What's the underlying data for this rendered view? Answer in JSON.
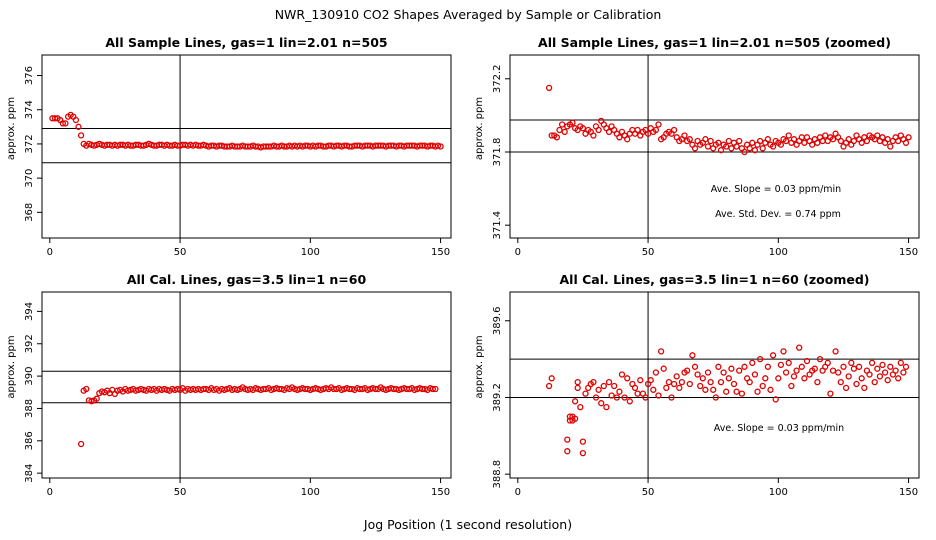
{
  "figure": {
    "title": "NWR_130910  CO2 Shapes Averaged by Sample or Calibration",
    "xlabel": "Jog Position (1 second resolution)"
  },
  "colors": {
    "points": "#e00000",
    "lines": "#000000"
  },
  "chart_data": [
    {
      "type": "scatter",
      "title": "All Sample Lines, gas=1 lin=2.01 n=505",
      "ylabel": "approx. ppm",
      "xlim": [
        -3,
        154
      ],
      "ylim": [
        366.5,
        377.2
      ],
      "xticks": [
        0,
        50,
        100,
        150
      ],
      "yticks": [
        368,
        370,
        372,
        374,
        376
      ],
      "vline_x": 50,
      "hlines": [
        370.9,
        372.9
      ],
      "annotations": [],
      "series": [
        {
          "x_start": 1,
          "y": [
            373.5,
            373.5,
            373.5,
            373.4,
            373.2,
            373.2,
            373.6,
            373.7,
            373.6,
            373.4,
            373.0,
            372.5,
            372.0,
            371.9,
            372.0,
            371.95,
            371.9,
            371.95,
            372.0,
            371.95,
            371.9,
            371.95,
            371.95,
            371.9,
            371.95,
            371.9,
            371.95,
            371.95,
            371.9,
            371.95,
            371.9,
            371.9,
            371.95,
            371.95,
            371.9,
            371.9,
            371.95,
            372.0,
            371.95,
            371.9,
            371.9,
            371.95,
            371.95,
            371.9,
            371.95,
            371.9,
            371.9,
            371.95,
            371.9,
            371.9,
            371.95,
            371.95,
            371.9,
            371.95,
            371.9,
            371.95,
            371.9,
            371.9,
            371.95,
            371.9,
            371.85,
            371.9,
            371.9,
            371.85,
            371.9,
            371.9,
            371.85,
            371.85,
            371.85,
            371.9,
            371.85,
            371.85,
            371.85,
            371.9,
            371.85,
            371.85,
            371.85,
            371.9,
            371.85,
            371.85,
            371.8,
            371.85,
            371.85,
            371.85,
            371.85,
            371.9,
            371.85,
            371.85,
            371.9,
            371.85,
            371.85,
            371.9,
            371.85,
            371.9,
            371.85,
            371.9,
            371.85,
            371.9,
            371.9,
            371.85,
            371.9,
            371.85,
            371.9,
            371.9,
            371.85,
            371.85,
            371.9,
            371.9,
            371.85,
            371.9,
            371.9,
            371.85,
            371.9,
            371.9,
            371.85,
            371.85,
            371.9,
            371.9,
            371.9,
            371.85,
            371.9,
            371.9,
            371.9,
            371.85,
            371.9,
            371.9,
            371.9,
            371.9,
            371.85,
            371.9,
            371.9,
            371.9,
            371.85,
            371.9,
            371.9,
            371.85,
            371.9,
            371.9,
            371.9,
            371.9,
            371.85,
            371.9,
            371.9,
            371.9,
            371.85,
            371.9,
            371.9,
            371.85,
            371.9,
            371.85
          ]
        }
      ]
    },
    {
      "type": "scatter",
      "title": "All Sample Lines, gas=1 lin=2.01 n=505 (zoomed)",
      "ylabel": "approx. ppm",
      "xlim": [
        -3,
        154
      ],
      "ylim": [
        371.33,
        372.33
      ],
      "xticks": [
        0,
        50,
        100,
        150
      ],
      "yticks": [
        371.4,
        371.8,
        372.2
      ],
      "vline_x": 50,
      "hlines": [
        371.8,
        371.975
      ],
      "annotations": [
        "Ave. Slope =  0.03  ppm/min",
        "Ave. Std. Dev. =  0.74  ppm"
      ],
      "series": [
        {
          "x_start": 12,
          "y": [
            372.15,
            371.89,
            371.89,
            371.88,
            371.92,
            371.95,
            371.91,
            371.94,
            371.95,
            371.96,
            371.93,
            371.92,
            371.94,
            371.93,
            371.9,
            371.92,
            371.91,
            371.89,
            371.94,
            371.92,
            371.97,
            371.95,
            371.93,
            371.91,
            371.94,
            371.92,
            371.9,
            371.88,
            371.91,
            371.89,
            371.87,
            371.9,
            371.92,
            371.9,
            371.92,
            371.89,
            371.91,
            371.92,
            371.9,
            371.93,
            371.91,
            371.92,
            371.95,
            371.87,
            371.88,
            371.9,
            371.91,
            371.9,
            371.92,
            371.88,
            371.86,
            371.87,
            371.89,
            371.86,
            371.87,
            371.84,
            371.82,
            371.86,
            371.84,
            371.85,
            371.87,
            371.83,
            371.86,
            371.82,
            371.84,
            371.85,
            371.81,
            371.84,
            371.83,
            371.86,
            371.82,
            371.85,
            371.83,
            371.86,
            371.82,
            371.8,
            371.84,
            371.82,
            371.85,
            371.81,
            371.84,
            371.86,
            371.82,
            371.85,
            371.87,
            371.84,
            371.83,
            371.86,
            371.85,
            371.84,
            371.87,
            371.86,
            371.89,
            371.85,
            371.87,
            371.84,
            371.86,
            371.88,
            371.85,
            371.88,
            371.86,
            371.84,
            371.87,
            371.85,
            371.88,
            371.86,
            371.89,
            371.86,
            371.88,
            371.87,
            371.9,
            371.88,
            371.86,
            371.83,
            371.85,
            371.87,
            371.84,
            371.86,
            371.89,
            371.87,
            371.85,
            371.88,
            371.86,
            371.89,
            371.88,
            371.87,
            371.89,
            371.86,
            371.88,
            371.85,
            371.87,
            371.83,
            371.86,
            371.88,
            371.86,
            371.89,
            371.87,
            371.85,
            371.88
          ]
        }
      ]
    },
    {
      "type": "scatter",
      "title": "All Cal. Lines, gas=3.5 lin=1 n=60",
      "ylabel": "approx. ppm",
      "xlim": [
        -3,
        154
      ],
      "ylim": [
        383.7,
        395.2
      ],
      "xticks": [
        0,
        50,
        100,
        150
      ],
      "yticks": [
        384,
        386,
        388,
        390,
        392,
        394
      ],
      "vline_x": 50,
      "hlines": [
        388.35,
        390.3
      ],
      "annotations": [],
      "series": [
        {
          "x_start": 12,
          "y": [
            385.8,
            389.1,
            389.2,
            388.5,
            388.45,
            388.5,
            388.6,
            388.95,
            389.05,
            389.0,
            389.1,
            388.95,
            389.15,
            388.9,
            389.1,
            389.15,
            389.05,
            389.2,
            389.1,
            389.15,
            389.2,
            389.1,
            389.15,
            389.2,
            389.15,
            389.1,
            389.2,
            389.15,
            389.2,
            389.1,
            389.2,
            389.15,
            389.2,
            389.15,
            389.1,
            389.2,
            389.15,
            389.2,
            389.15,
            389.25,
            389.1,
            389.2,
            389.15,
            389.2,
            389.15,
            389.2,
            389.15,
            389.2,
            389.2,
            389.15,
            389.25,
            389.15,
            389.2,
            389.1,
            389.2,
            389.15,
            389.2,
            389.25,
            389.15,
            389.2,
            389.15,
            389.2,
            389.3,
            389.2,
            389.15,
            389.2,
            389.15,
            389.25,
            389.2,
            389.15,
            389.2,
            389.2,
            389.25,
            389.15,
            389.2,
            389.25,
            389.2,
            389.2,
            389.15,
            389.25,
            389.2,
            389.3,
            389.2,
            389.15,
            389.2,
            389.25,
            389.2,
            389.2,
            389.15,
            389.2,
            389.25,
            389.2,
            389.15,
            389.2,
            389.25,
            389.2,
            389.3,
            389.2,
            389.2,
            389.25,
            389.15,
            389.2,
            389.25,
            389.2,
            389.2,
            389.15,
            389.25,
            389.2,
            389.2,
            389.25,
            389.15,
            389.2,
            389.25,
            389.2,
            389.2,
            389.3,
            389.2,
            389.15,
            389.2,
            389.25,
            389.2,
            389.2,
            389.15,
            389.2,
            389.25,
            389.2,
            389.2,
            389.25,
            389.15,
            389.2,
            389.25,
            389.2,
            389.2,
            389.15,
            389.25,
            389.2,
            389.2
          ]
        }
      ]
    },
    {
      "type": "scatter",
      "title": "All Cal. Lines, gas=3.5 lin=1 n=60 (zoomed)",
      "ylabel": "approx. ppm",
      "xlim": [
        -3,
        154
      ],
      "ylim": [
        388.78,
        389.75
      ],
      "xticks": [
        0,
        50,
        100,
        150
      ],
      "yticks": [
        388.8,
        389.2,
        389.6
      ],
      "vline_x": 50,
      "hlines": [
        389.2,
        389.4
      ],
      "annotations": [
        "Ave. Slope =  0.03  ppm/min"
      ],
      "series": [
        {
          "x_start": 12,
          "y": [
            389.26,
            389.3,
            null,
            null,
            null,
            null,
            null,
            388.98,
            389.1,
            389.1,
            389.18,
            389.28,
            389.15,
            388.97,
            389.22,
            389.25,
            389.27,
            389.28,
            389.2,
            389.24,
            389.17,
            389.26,
            389.15,
            389.28,
            389.21,
            389.26,
            389.2,
            389.23,
            389.32,
            389.2,
            389.3,
            389.18,
            389.27,
            389.25,
            389.22,
            389.29,
            389.22,
            389.2,
            389.27,
            389.29,
            389.24,
            389.33,
            389.21,
            389.44,
            389.35,
            389.25,
            389.28,
            389.2,
            389.27,
            389.31,
            389.25,
            389.28,
            389.33,
            389.34,
            389.27,
            389.42,
            389.36,
            389.32,
            389.26,
            389.3,
            389.24,
            389.33,
            389.28,
            389.24,
            389.2,
            389.36,
            389.28,
            389.33,
            389.23,
            389.3,
            389.35,
            389.27,
            389.23,
            389.34,
            389.22,
            389.36,
            389.3,
            389.28,
            389.38,
            389.32,
            389.23,
            389.4,
            389.26,
            389.3,
            389.36,
            389.24,
            389.42,
            389.19,
            389.3,
            389.37,
            389.44,
            389.33,
            389.38,
            389.26,
            389.31,
            389.34,
            389.46,
            389.36,
            389.3,
            389.39,
            389.32,
            389.34,
            389.35,
            389.28,
            389.4,
            389.34,
            389.36,
            389.38,
            389.22,
            389.34,
            389.44,
            389.33,
            389.28,
            389.36,
            389.25,
            389.31,
            389.38,
            389.35,
            389.27,
            389.36,
            389.3,
            389.25,
            389.34,
            389.32,
            389.38,
            389.28,
            389.35,
            389.31,
            389.37,
            389.33,
            389.29,
            389.36,
            389.32,
            389.34,
            389.3,
            389.38,
            389.33,
            389.36
          ]
        }
      ]
    }
  ]
}
